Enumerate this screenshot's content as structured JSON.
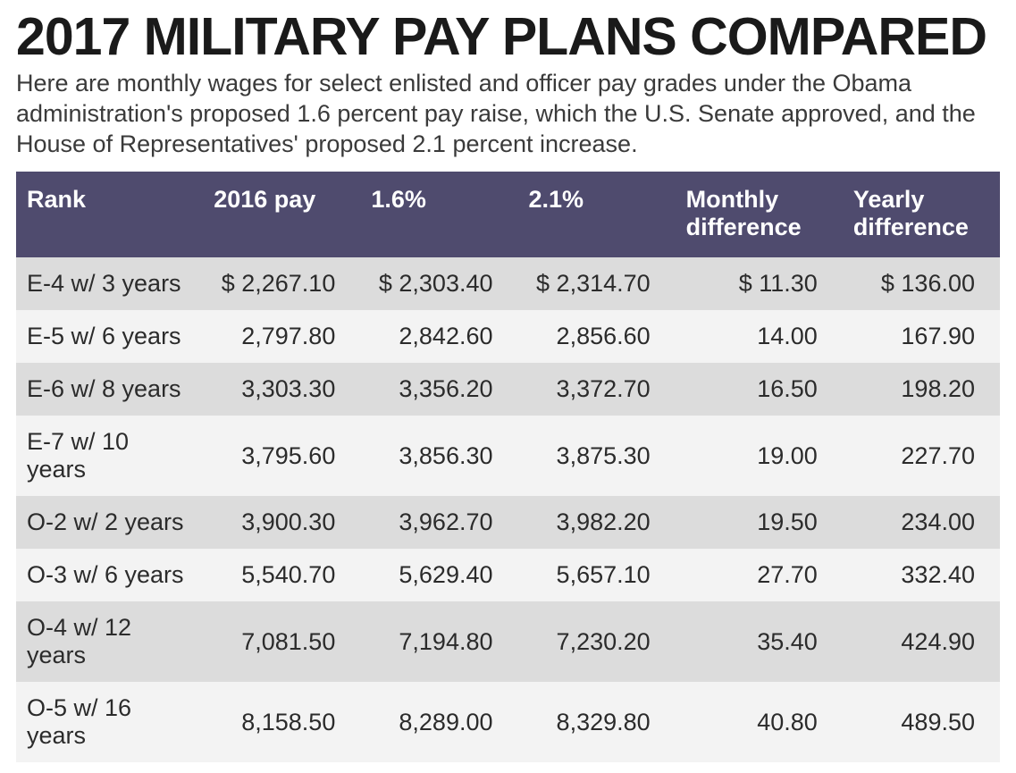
{
  "title": "2017 MILITARY PAY PLANS COMPARED",
  "subtitle": "Here are monthly wages for select enlisted and officer pay grades under the Obama administration's proposed 1.6 percent pay raise, which the U.S. Senate approved, and the House of Representatives' proposed 2.1 percent increase.",
  "table": {
    "header_bg": "#4f4b6e",
    "header_text_color": "#ffffff",
    "row_odd_bg": "#dcdcdc",
    "row_even_bg": "#f3f3f3",
    "font_size_pt": 20,
    "columns": [
      {
        "key": "rank",
        "label": "Rank",
        "align": "left"
      },
      {
        "key": "pay2016",
        "label": "2016 pay",
        "align": "right"
      },
      {
        "key": "pct16",
        "label": "1.6%",
        "align": "right"
      },
      {
        "key": "pct21",
        "label": "2.1%",
        "align": "right"
      },
      {
        "key": "mdiff",
        "label": "Monthly\ndifference",
        "align": "right"
      },
      {
        "key": "ydiff",
        "label": "Yearly\ndifference",
        "align": "right"
      }
    ],
    "rows": [
      {
        "rank": "E-4 w/ 3 years",
        "pay2016": "$ 2,267.10",
        "pct16": "$ 2,303.40",
        "pct21": "$ 2,314.70",
        "mdiff": "$ 11.30",
        "ydiff": "$ 136.00"
      },
      {
        "rank": "E-5 w/ 6 years",
        "pay2016": "2,797.80",
        "pct16": "2,842.60",
        "pct21": "2,856.60",
        "mdiff": "14.00",
        "ydiff": "167.90"
      },
      {
        "rank": "E-6 w/ 8 years",
        "pay2016": "3,303.30",
        "pct16": "3,356.20",
        "pct21": "3,372.70",
        "mdiff": "16.50",
        "ydiff": "198.20"
      },
      {
        "rank": "E-7 w/ 10 years",
        "pay2016": "3,795.60",
        "pct16": "3,856.30",
        "pct21": "3,875.30",
        "mdiff": "19.00",
        "ydiff": "227.70"
      },
      {
        "rank": "O-2 w/ 2 years",
        "pay2016": "3,900.30",
        "pct16": "3,962.70",
        "pct21": "3,982.20",
        "mdiff": "19.50",
        "ydiff": "234.00"
      },
      {
        "rank": "O-3 w/ 6 years",
        "pay2016": "5,540.70",
        "pct16": "5,629.40",
        "pct21": "5,657.10",
        "mdiff": "27.70",
        "ydiff": "332.40"
      },
      {
        "rank": "O-4 w/ 12 years",
        "pay2016": "7,081.50",
        "pct16": "7,194.80",
        "pct21": "7,230.20",
        "mdiff": "35.40",
        "ydiff": "424.90"
      },
      {
        "rank": "O-5 w/ 16 years",
        "pay2016": "8,158.50",
        "pct16": "8,289.00",
        "pct21": "8,329.80",
        "mdiff": "40.80",
        "ydiff": "489.50"
      }
    ]
  }
}
